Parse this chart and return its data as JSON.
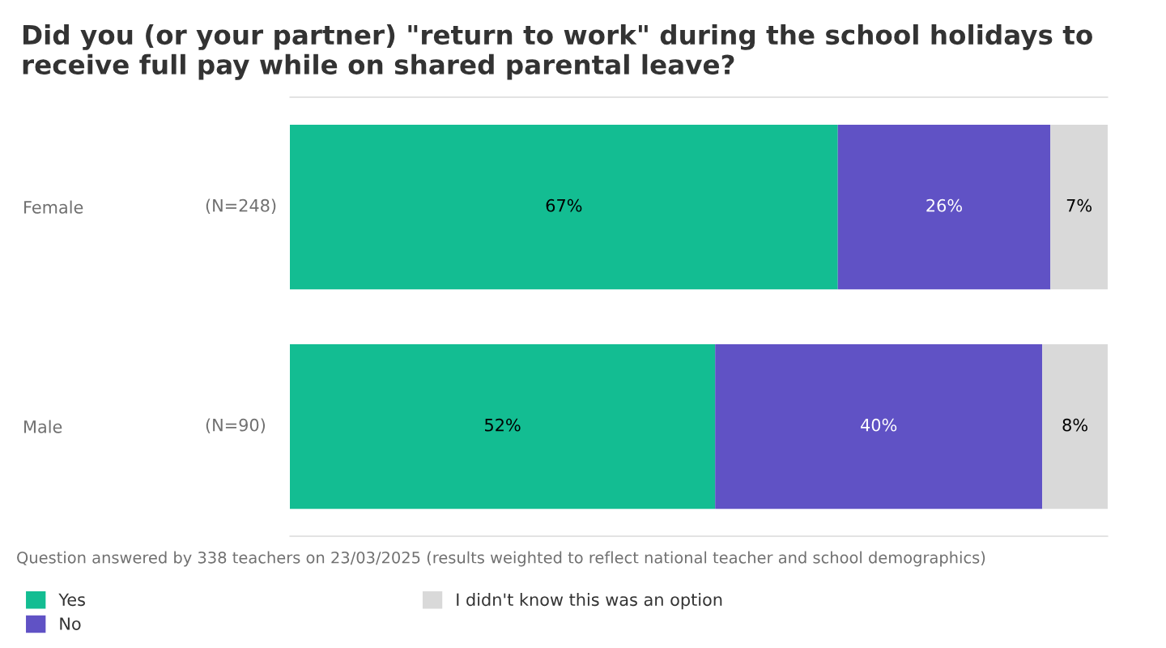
{
  "chart_data": {
    "type": "bar",
    "orientation": "horizontal",
    "stacked": true,
    "title": "Did you (or your partner) \"return to work\" during the school holidays to receive full pay while on shared parental leave?",
    "categories": [
      "Female",
      "Male"
    ],
    "series": [
      {
        "name": "Yes",
        "color": "#13bd92",
        "values": [
          67,
          52
        ],
        "value_labels": [
          "67%",
          "52%"
        ]
      },
      {
        "name": "No",
        "color": "#6052c5",
        "values": [
          26,
          40
        ],
        "value_labels": [
          "26%",
          "40%"
        ]
      },
      {
        "name": "I didn't know this was an option",
        "color": "#d9d9d9",
        "values": [
          7,
          8
        ],
        "value_labels": [
          "7%",
          "8%"
        ]
      }
    ],
    "xlim": [
      0,
      100
    ],
    "tick_labels": "y",
    "legend": "bottom",
    "annotations": [
      "(N=248)",
      "(N=90)",
      "Question answered by 338 teachers on 23/03/2025 (results weighted to reflect national teacher and school demographics)"
    ]
  }
}
